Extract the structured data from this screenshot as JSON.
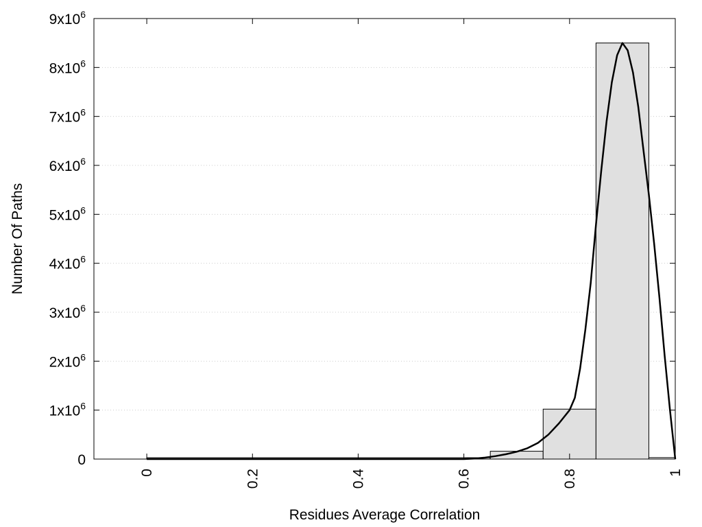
{
  "chart_data": {
    "type": "bar",
    "xlabel": "Residues Average Correlation",
    "ylabel": "Number Of Paths",
    "xlim": [
      -0.1,
      1.0
    ],
    "ylim": [
      0,
      9000000
    ],
    "grid": true,
    "x_ticks": [
      {
        "value": 0,
        "label": "0"
      },
      {
        "value": 0.2,
        "label": "0.2"
      },
      {
        "value": 0.4,
        "label": "0.4"
      },
      {
        "value": 0.6,
        "label": "0.6"
      },
      {
        "value": 0.8,
        "label": "0.8"
      },
      {
        "value": 1.0,
        "label": "1"
      }
    ],
    "y_ticks": [
      {
        "value": 0,
        "base": "0",
        "exp": ""
      },
      {
        "value": 1000000,
        "base": "1x10",
        "exp": "6"
      },
      {
        "value": 2000000,
        "base": "2x10",
        "exp": "6"
      },
      {
        "value": 3000000,
        "base": "3x10",
        "exp": "6"
      },
      {
        "value": 4000000,
        "base": "4x10",
        "exp": "6"
      },
      {
        "value": 5000000,
        "base": "5x10",
        "exp": "6"
      },
      {
        "value": 6000000,
        "base": "6x10",
        "exp": "6"
      },
      {
        "value": 7000000,
        "base": "7x10",
        "exp": "6"
      },
      {
        "value": 8000000,
        "base": "8x10",
        "exp": "6"
      },
      {
        "value": 9000000,
        "base": "9x10",
        "exp": "6"
      }
    ],
    "bars": [
      {
        "x0": 0.65,
        "x1": 0.75,
        "value": 160000
      },
      {
        "x0": 0.75,
        "x1": 0.85,
        "value": 1020000
      },
      {
        "x0": 0.85,
        "x1": 0.95,
        "value": 8500000
      },
      {
        "x0": 0.95,
        "x1": 1.0,
        "value": 30000
      }
    ],
    "baseline_bar": {
      "x0": 0.0,
      "x1": 0.65,
      "value": 0
    },
    "fit_curve": {
      "x": [
        0,
        0.5,
        0.6,
        0.62,
        0.64,
        0.66,
        0.68,
        0.7,
        0.72,
        0.74,
        0.76,
        0.78,
        0.8,
        0.81,
        0.82,
        0.83,
        0.84,
        0.85,
        0.86,
        0.87,
        0.88,
        0.89,
        0.9,
        0.91,
        0.92,
        0.93,
        0.94,
        0.95,
        0.96,
        0.97,
        0.98,
        0.99,
        1.0
      ],
      "y": [
        0,
        0,
        0,
        10000,
        30000,
        60000,
        100000,
        150000,
        220000,
        330000,
        500000,
        730000,
        1000000,
        1250000,
        1850000,
        2650000,
        3600000,
        4800000,
        5900000,
        6900000,
        7700000,
        8250000,
        8500000,
        8350000,
        7900000,
        7200000,
        6300000,
        5400000,
        4400000,
        3300000,
        2100000,
        1000000,
        0
      ]
    },
    "colors": {
      "bar_fill": "#e0e0e0",
      "bar_stroke": "#000000",
      "curve": "#000000",
      "grid": "#cccccc"
    }
  }
}
